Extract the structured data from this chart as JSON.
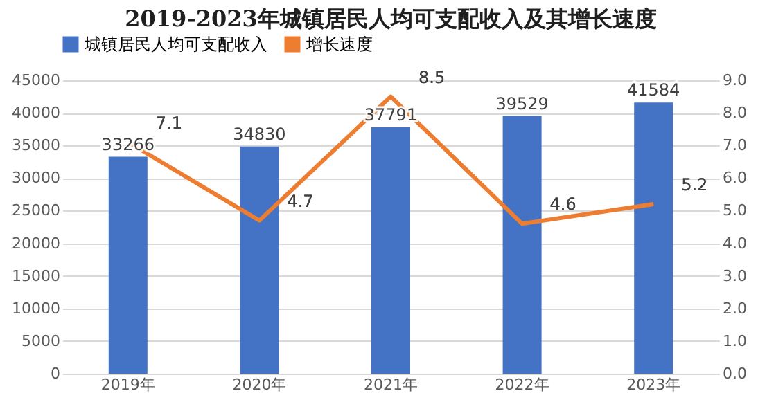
{
  "chart_data": {
    "type": "bar",
    "title": "2019-2023年城镇居民人均可支配收入及其增长速度",
    "categories": [
      "2019年",
      "2020年",
      "2021年",
      "2022年",
      "2023年"
    ],
    "series": [
      {
        "name": "城镇居民人均可支配收入",
        "color": "#4472c4",
        "values": [
          33266,
          34830,
          37791,
          39529,
          41584
        ]
      },
      {
        "name": "增长速度",
        "type": "line",
        "axis": "y2",
        "color": "#ed7d31",
        "values": [
          7.1,
          4.7,
          8.5,
          4.6,
          5.2
        ]
      }
    ],
    "ylim": [
      0,
      45000
    ],
    "yticks": [
      0,
      5000,
      10000,
      15000,
      20000,
      25000,
      30000,
      35000,
      40000,
      45000
    ],
    "y2lim": [
      0,
      9
    ],
    "y2ticks": [
      {
        "value": 0,
        "label": "0.0"
      },
      {
        "value": 1,
        "label": "1.0"
      },
      {
        "value": 2,
        "label": "2.0"
      },
      {
        "value": 3,
        "label": "3.0"
      },
      {
        "value": 4,
        "label": "4.0"
      },
      {
        "value": 5,
        "label": "5.0"
      },
      {
        "value": 6,
        "label": "6.0"
      },
      {
        "value": 7,
        "label": "7.0"
      },
      {
        "value": 8,
        "label": "8.0"
      },
      {
        "value": 9,
        "label": "9.0"
      }
    ],
    "data_labels": true,
    "grid": "y",
    "legend": "top",
    "marker": "none"
  }
}
